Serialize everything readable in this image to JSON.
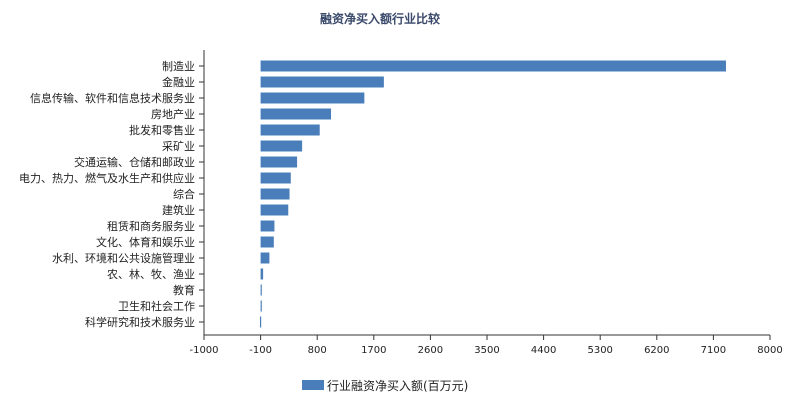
{
  "chart_data": {
    "type": "bar",
    "orientation": "horizontal",
    "title": "融资净买入额行业比较",
    "categories": [
      "制造业",
      "金融业",
      "信息传输、软件和信息技术服务业",
      "房地产业",
      "批发和零售业",
      "采矿业",
      "交通运输、仓储和邮政业",
      "电力、热力、燃气及水生产和供应业",
      "综合",
      "建筑业",
      "租赁和商务服务业",
      "文化、体育和娱乐业",
      "水利、环境和公共设施管理业",
      "农、林、牧、渔业",
      "教育",
      "卫生和社会工作",
      "科学研究和技术服务业"
    ],
    "series": [
      {
        "name": "行业融资净买入额(百万元)",
        "color": "#4a7ebb",
        "values": [
          7300,
          1860,
          1550,
          1020,
          840,
          560,
          480,
          380,
          360,
          340,
          120,
          110,
          40,
          -60,
          -95,
          -100,
          -110
        ]
      }
    ],
    "x_ticks": [
      "-1000",
      "-100",
      "800",
      "1700",
      "2600",
      "3500",
      "4400",
      "5300",
      "6200",
      "7100",
      "8000"
    ],
    "xlim": [
      -1000,
      8000
    ],
    "grid": false,
    "legend_position": "bottom"
  }
}
